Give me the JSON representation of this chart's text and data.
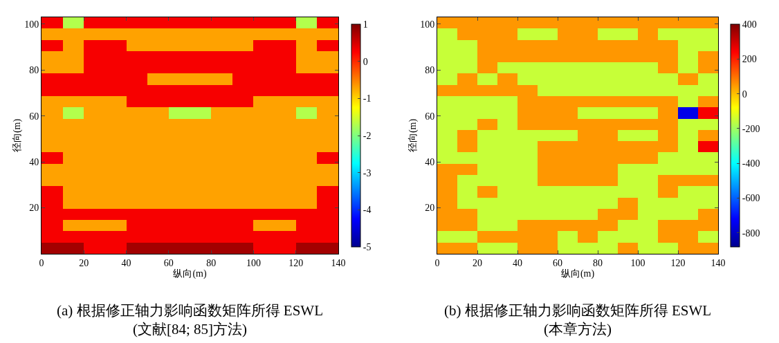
{
  "chart_data": [
    {
      "type": "heatmap",
      "title": "(a) 根据修正轴力影响函数矩阵所得 ESWL\n(文献[84; 85]方法)",
      "xlabel": "纵向(m)",
      "ylabel": "径向(m)",
      "xlim": [
        0,
        140
      ],
      "ylim": [
        0,
        103
      ],
      "xticks": [
        0,
        20,
        40,
        60,
        80,
        100,
        120,
        140
      ],
      "yticks": [
        20,
        40,
        60,
        80,
        100
      ],
      "clim": [
        -5,
        1
      ],
      "cticks": [
        -5,
        -4,
        -3,
        -2,
        -1,
        0,
        1
      ],
      "cells": [
        [
          0.3,
          -1.7,
          0.3,
          0.3,
          0.3,
          0.3,
          0.3,
          0.3,
          0.3,
          0.3,
          0.3,
          0.3,
          -1.7,
          0.3
        ],
        [
          -0.7,
          -0.7,
          -0.7,
          -0.7,
          -0.7,
          -0.7,
          -0.7,
          -0.7,
          -0.7,
          -0.7,
          -0.7,
          -0.7,
          -0.7,
          -0.7
        ],
        [
          0.3,
          -0.7,
          0.3,
          0.3,
          -0.7,
          -0.7,
          -0.7,
          -0.7,
          -0.7,
          -0.7,
          0.3,
          0.3,
          -0.7,
          0.3
        ],
        [
          -0.7,
          -0.7,
          0.3,
          0.3,
          0.3,
          0.3,
          0.3,
          0.3,
          0.3,
          0.3,
          0.3,
          0.3,
          -0.7,
          -0.7
        ],
        [
          -0.7,
          -0.7,
          0.3,
          0.3,
          0.3,
          0.3,
          0.3,
          0.3,
          0.3,
          0.3,
          0.3,
          0.3,
          -0.7,
          -0.7
        ],
        [
          0.3,
          0.3,
          0.3,
          0.3,
          0.3,
          -0.7,
          -0.7,
          -0.7,
          -0.7,
          0.3,
          0.3,
          0.3,
          0.3,
          0.3
        ],
        [
          0.3,
          0.3,
          0.3,
          0.3,
          0.3,
          0.3,
          0.3,
          0.3,
          0.3,
          0.3,
          0.3,
          0.3,
          0.3,
          0.3
        ],
        [
          -0.7,
          -0.7,
          -0.7,
          -0.7,
          0.3,
          0.3,
          0.3,
          0.3,
          0.3,
          0.3,
          -0.7,
          -0.7,
          -0.7,
          -0.7
        ],
        [
          -0.7,
          -1.7,
          -0.7,
          -0.7,
          -0.7,
          -0.7,
          -1.7,
          -1.7,
          -0.7,
          -0.7,
          -0.7,
          -0.7,
          -1.7,
          -0.7
        ],
        [
          -0.7,
          -0.7,
          -0.7,
          -0.7,
          -0.7,
          -0.7,
          -0.7,
          -0.7,
          -0.7,
          -0.7,
          -0.7,
          -0.7,
          -0.7,
          -0.7
        ],
        [
          -0.7,
          -0.7,
          -0.7,
          -0.7,
          -0.7,
          -0.7,
          -0.7,
          -0.7,
          -0.7,
          -0.7,
          -0.7,
          -0.7,
          -0.7,
          -0.7
        ],
        [
          -0.7,
          -0.7,
          -0.7,
          -0.7,
          -0.7,
          -0.7,
          -0.7,
          -0.7,
          -0.7,
          -0.7,
          -0.7,
          -0.7,
          -0.7,
          -0.7
        ],
        [
          0.3,
          -0.7,
          -0.7,
          -0.7,
          -0.7,
          -0.7,
          -0.7,
          -0.7,
          -0.7,
          -0.7,
          -0.7,
          -0.7,
          -0.7,
          0.3
        ],
        [
          -0.7,
          -0.7,
          -0.7,
          -0.7,
          -0.7,
          -0.7,
          -0.7,
          -0.7,
          -0.7,
          -0.7,
          -0.7,
          -0.7,
          -0.7,
          -0.7
        ],
        [
          -0.7,
          -0.7,
          -0.7,
          -0.7,
          -0.7,
          -0.7,
          -0.7,
          -0.7,
          -0.7,
          -0.7,
          -0.7,
          -0.7,
          -0.7,
          -0.7
        ],
        [
          0.3,
          -0.7,
          -0.7,
          -0.7,
          -0.7,
          -0.7,
          -0.7,
          -0.7,
          -0.7,
          -0.7,
          -0.7,
          -0.7,
          -0.7,
          0.3
        ],
        [
          0.3,
          -0.7,
          -0.7,
          -0.7,
          -0.7,
          -0.7,
          -0.7,
          -0.7,
          -0.7,
          -0.7,
          -0.7,
          -0.7,
          -0.7,
          0.3
        ],
        [
          0.3,
          0.3,
          0.3,
          0.3,
          0.3,
          0.3,
          0.3,
          0.3,
          0.3,
          0.3,
          0.3,
          0.3,
          0.3,
          0.3
        ],
        [
          0.3,
          -0.7,
          -0.7,
          -0.7,
          0.3,
          0.3,
          0.3,
          0.3,
          0.3,
          0.3,
          -0.7,
          -0.7,
          0.3,
          0.3
        ],
        [
          0.3,
          0.3,
          0.3,
          0.3,
          0.3,
          0.3,
          0.3,
          0.3,
          0.3,
          0.3,
          0.3,
          0.3,
          0.3,
          0.3
        ],
        [
          0.8,
          0.8,
          0.3,
          0.3,
          0.8,
          0.8,
          0.8,
          0.8,
          0.8,
          0.8,
          0.3,
          0.3,
          0.8,
          0.8
        ]
      ]
    },
    {
      "type": "heatmap",
      "title": "(b) 根据修正轴力影响函数矩阵所得 ESWL\n(本章方法)",
      "xlabel": "纵向(m)",
      "ylabel": "径向(m)",
      "xlim": [
        0,
        140
      ],
      "ylim": [
        0,
        103
      ],
      "xticks": [
        0,
        20,
        40,
        60,
        80,
        100,
        120,
        140
      ],
      "yticks": [
        20,
        40,
        60,
        80,
        100
      ],
      "clim": [
        -880,
        400
      ],
      "cticks": [
        -800,
        -600,
        -400,
        -200,
        0,
        200,
        400
      ],
      "cells": [
        [
          50,
          50,
          50,
          50,
          50,
          50,
          50,
          50,
          50,
          50,
          50,
          50,
          50,
          50
        ],
        [
          -150,
          50,
          50,
          50,
          -150,
          -150,
          50,
          50,
          -150,
          -150,
          50,
          -150,
          -150,
          -150
        ],
        [
          -150,
          -150,
          50,
          50,
          50,
          50,
          50,
          50,
          50,
          50,
          50,
          50,
          -150,
          -150
        ],
        [
          -150,
          -150,
          50,
          50,
          50,
          50,
          50,
          50,
          50,
          50,
          50,
          50,
          -150,
          50
        ],
        [
          -150,
          -150,
          50,
          -150,
          -150,
          -150,
          -150,
          -150,
          -150,
          -150,
          -150,
          50,
          -150,
          50
        ],
        [
          -150,
          50,
          -150,
          50,
          -150,
          -150,
          -150,
          -150,
          -150,
          -150,
          -150,
          -150,
          50,
          -150
        ],
        [
          50,
          50,
          50,
          50,
          50,
          -150,
          -150,
          -150,
          -150,
          -150,
          -150,
          -150,
          -150,
          -150
        ],
        [
          -150,
          -150,
          -150,
          -150,
          50,
          50,
          50,
          50,
          50,
          50,
          50,
          50,
          -150,
          50
        ],
        [
          -150,
          -150,
          -150,
          -150,
          50,
          50,
          50,
          -150,
          -150,
          -150,
          -150,
          50,
          -750,
          250
        ],
        [
          -150,
          -150,
          50,
          -150,
          50,
          50,
          50,
          50,
          50,
          50,
          50,
          50,
          -150,
          -150
        ],
        [
          -150,
          50,
          -150,
          -150,
          -150,
          -150,
          -150,
          50,
          50,
          -150,
          -150,
          50,
          -150,
          50
        ],
        [
          -150,
          50,
          -150,
          -150,
          -150,
          50,
          50,
          50,
          50,
          50,
          50,
          50,
          -150,
          250
        ],
        [
          -150,
          -150,
          -150,
          -150,
          -150,
          50,
          50,
          50,
          50,
          50,
          50,
          -150,
          -150,
          -150
        ],
        [
          50,
          50,
          -150,
          -150,
          -150,
          50,
          50,
          50,
          50,
          -150,
          -150,
          -150,
          -150,
          -150
        ],
        [
          50,
          -150,
          -150,
          -150,
          -150,
          50,
          50,
          50,
          50,
          -150,
          -150,
          50,
          50,
          50
        ],
        [
          50,
          -150,
          50,
          -150,
          -150,
          -150,
          -150,
          -150,
          -150,
          -150,
          -150,
          50,
          -150,
          -150
        ],
        [
          50,
          -150,
          -150,
          -150,
          -150,
          -150,
          -150,
          -150,
          -150,
          50,
          -150,
          -150,
          -150,
          -150
        ],
        [
          50,
          50,
          -150,
          -150,
          -150,
          -150,
          -150,
          -150,
          50,
          50,
          -150,
          -150,
          -150,
          50
        ],
        [
          50,
          50,
          -150,
          -150,
          50,
          50,
          50,
          50,
          50,
          -150,
          -150,
          50,
          50,
          50
        ],
        [
          -150,
          -150,
          50,
          50,
          50,
          50,
          -150,
          50,
          -150,
          -150,
          -150,
          50,
          50,
          -150
        ],
        [
          50,
          50,
          -150,
          -150,
          50,
          50,
          -150,
          -150,
          -150,
          50,
          -150,
          -150,
          50,
          50
        ]
      ]
    }
  ]
}
